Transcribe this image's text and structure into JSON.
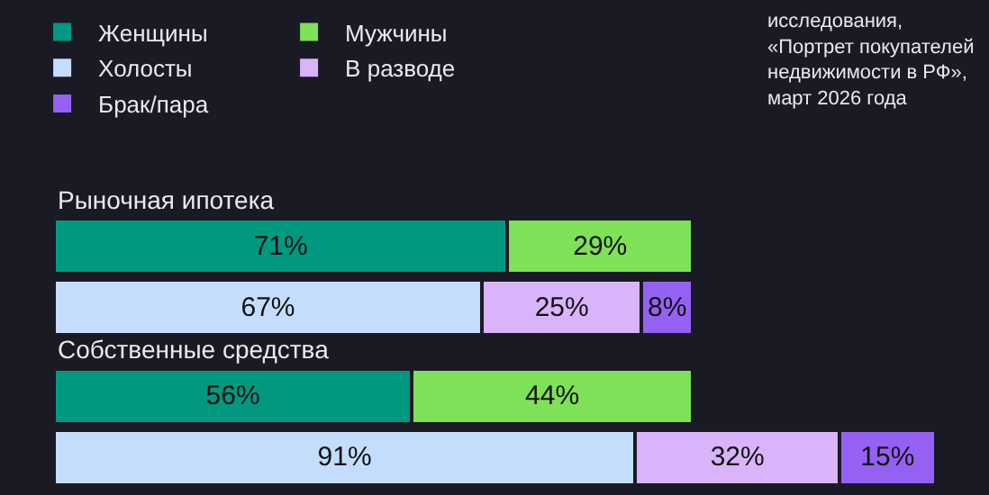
{
  "chart_data": {
    "type": "bar",
    "orientation": "horizontal",
    "stacked": true,
    "categories": [
      "Рыночная ипотека",
      null,
      "Собственные средства",
      null
    ],
    "series": [
      {
        "name": "Женщины",
        "color": "#009980",
        "values": [
          71,
          null,
          56,
          null
        ],
        "value_labels": [
          "71%",
          null,
          "56%",
          null
        ]
      },
      {
        "name": "Мужчины",
        "color": "#7fe157",
        "values": [
          29,
          null,
          44,
          null
        ],
        "value_labels": [
          "29%",
          null,
          "44%",
          null
        ]
      },
      {
        "name": "Холосты",
        "color": "#c4ddfd",
        "values": [
          null,
          67,
          null,
          91
        ],
        "value_labels": [
          null,
          "67%",
          null,
          "91%"
        ]
      },
      {
        "name": "В разводе",
        "color": "#d9b4fb",
        "values": [
          null,
          25,
          null,
          32
        ],
        "value_labels": [
          null,
          "25%",
          null,
          "32%"
        ]
      },
      {
        "name": "Брак/пара",
        "color": "#9461f2",
        "values": [
          null,
          8,
          null,
          15
        ],
        "value_labels": [
          null,
          "8%",
          null,
          "15%"
        ]
      }
    ],
    "annotations": [
      "исследования, «Портрет покупателей недвижимости в РФ», март 2026 года"
    ],
    "legend": "top left"
  }
}
